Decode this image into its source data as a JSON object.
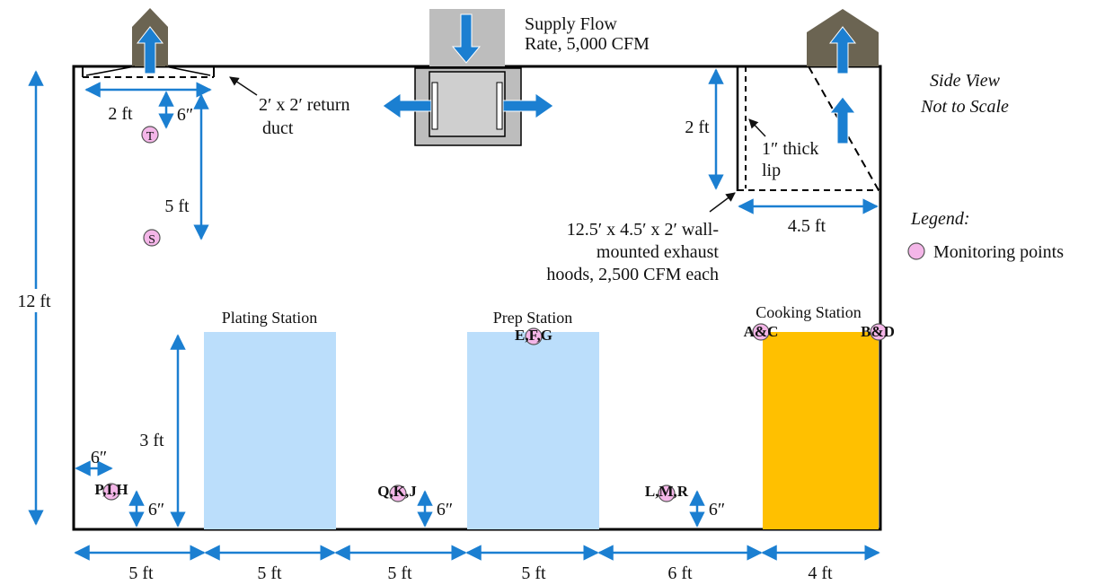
{
  "title": "Side View",
  "subtitle": "Not to Scale",
  "supply": {
    "line1": "Supply Flow",
    "line2": "Rate, 5,000 CFM"
  },
  "return_duct": {
    "line1": "2′ x 2′ return",
    "line2": "duct"
  },
  "hood": {
    "line1": "12.5′ x 4.5′ x 2′ wall-",
    "line2": "mounted exhaust",
    "line3": "hoods, 2,500 CFM each"
  },
  "lip": {
    "line1": "1″ thick",
    "line2": "lip"
  },
  "legend": {
    "title": "Legend:",
    "item": "Monitoring points"
  },
  "stations": {
    "plating": "Plating Station",
    "prep": "Prep Station",
    "cooking": "Cooking Station"
  },
  "points": {
    "T": "T",
    "S": "S",
    "EFG": "E,F,G",
    "AC": "A&C",
    "BD": "B&D",
    "PIH": "P,I,H",
    "QKJ": "Q,K,J",
    "LMR": "L,M,R"
  },
  "dims": {
    "h12": "12 ft",
    "d2ft": "2 ft",
    "d6in_top": "6″",
    "d5ft_v": "5 ft",
    "d2ft_hood": "2 ft",
    "d45ft": "4.5 ft",
    "d3ft": "3 ft",
    "d6in_h": "6″",
    "d6in_a": "6″",
    "d6in_b": "6″",
    "d6in_c": "6″",
    "bottom": [
      "5 ft",
      "5 ft",
      "5 ft",
      "5 ft",
      "6 ft",
      "4 ft"
    ]
  },
  "colors": {
    "arrow": "#1b7fd1",
    "station_blue": "#bbdefb",
    "cooking": "#ffc000",
    "marker": "#f4b6e8",
    "duct": "#6b6452",
    "diffuser": "#bdbdbd"
  }
}
